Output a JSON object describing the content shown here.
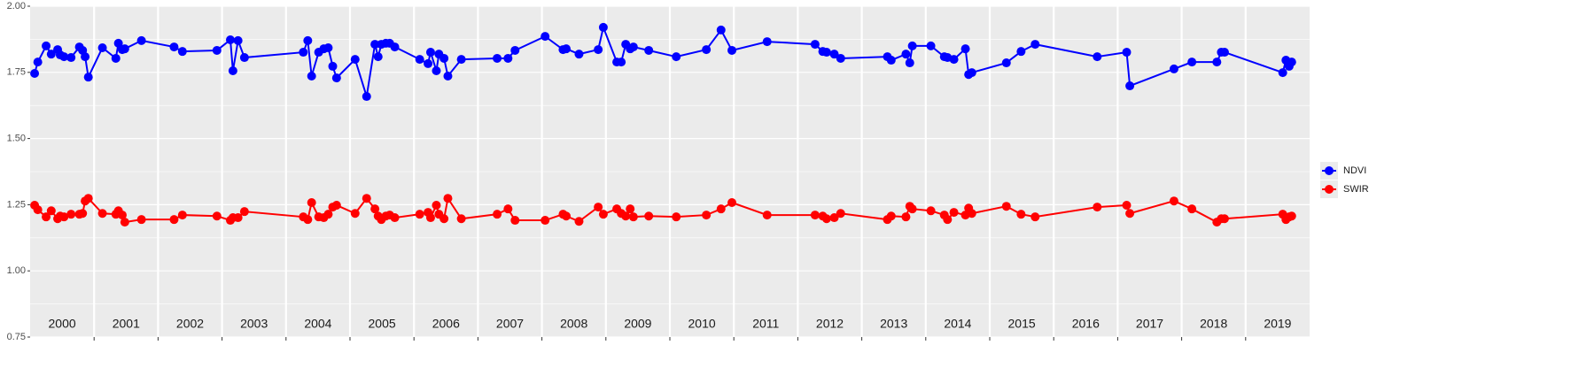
{
  "chart_data": {
    "type": "line",
    "categories": [
      "2000",
      "2001",
      "2002",
      "2003",
      "2004",
      "2005",
      "2006",
      "2007",
      "2008",
      "2009",
      "2010",
      "2011",
      "2012",
      "2013",
      "2014",
      "2015",
      "2016",
      "2017",
      "2018",
      "2019"
    ],
    "xlim": [
      2000,
      2020
    ],
    "xgrid": [
      2001,
      2002,
      2003,
      2004,
      2005,
      2006,
      2007,
      2008,
      2009,
      2010,
      2011,
      2012,
      2013,
      2014,
      2015,
      2016,
      2017,
      2018,
      2019
    ],
    "ylim": [
      0.75,
      2.0
    ],
    "yticks": [
      {
        "value": 0.75,
        "label": "0.75"
      },
      {
        "value": 1.0,
        "label": "1.00"
      },
      {
        "value": 1.25,
        "label": "1.25"
      },
      {
        "value": 1.5,
        "label": "1.50"
      },
      {
        "value": 1.75,
        "label": "1.75"
      },
      {
        "value": 2.0,
        "label": "2.00"
      }
    ],
    "grid": true,
    "legend": "right",
    "x": [
      2000.07,
      2000.12,
      2000.25,
      2000.33,
      2000.43,
      2000.47,
      2000.53,
      2000.64,
      2000.77,
      2000.82,
      2000.86,
      2000.91,
      2001.13,
      2001.34,
      2001.38,
      2001.44,
      2001.48,
      2001.74,
      2002.25,
      2002.38,
      2002.92,
      2003.13,
      2003.17,
      2003.25,
      2003.35,
      2004.27,
      2004.34,
      2004.4,
      2004.51,
      2004.59,
      2004.66,
      2004.73,
      2004.79,
      2005.08,
      2005.26,
      2005.39,
      2005.44,
      2005.49,
      2005.56,
      2005.62,
      2005.7,
      2006.09,
      2006.22,
      2006.26,
      2006.35,
      2006.39,
      2006.47,
      2006.53,
      2006.74,
      2007.3,
      2007.47,
      2007.58,
      2008.05,
      2008.33,
      2008.38,
      2008.58,
      2008.88,
      2008.96,
      2009.17,
      2009.24,
      2009.31,
      2009.38,
      2009.43,
      2009.67,
      2010.1,
      2010.57,
      2010.8,
      2010.97,
      2011.52,
      2012.27,
      2012.39,
      2012.45,
      2012.57,
      2012.67,
      2013.4,
      2013.46,
      2013.69,
      2013.75,
      2013.79,
      2014.08,
      2014.29,
      2014.34,
      2014.44,
      2014.62,
      2014.67,
      2014.72,
      2015.26,
      2015.49,
      2015.71,
      2016.68,
      2017.14,
      2017.19,
      2017.88,
      2018.16,
      2018.55,
      2018.62,
      2018.67,
      2019.58,
      2019.63,
      2019.68,
      2019.72
    ],
    "series": [
      {
        "name": "NDVI",
        "color": "#0000ff",
        "values": [
          1.746,
          1.789,
          1.85,
          1.819,
          1.836,
          1.816,
          1.809,
          1.806,
          1.846,
          1.833,
          1.809,
          1.732,
          1.843,
          1.803,
          1.86,
          1.836,
          1.839,
          1.87,
          1.846,
          1.829,
          1.833,
          1.873,
          1.756,
          1.87,
          1.806,
          1.826,
          1.87,
          1.736,
          1.826,
          1.839,
          1.843,
          1.773,
          1.729,
          1.799,
          1.659,
          1.856,
          1.809,
          1.856,
          1.86,
          1.86,
          1.846,
          1.799,
          1.783,
          1.826,
          1.756,
          1.819,
          1.803,
          1.736,
          1.799,
          1.803,
          1.803,
          1.833,
          1.886,
          1.836,
          1.839,
          1.819,
          1.836,
          1.92,
          1.789,
          1.789,
          1.856,
          1.839,
          1.846,
          1.833,
          1.809,
          1.836,
          1.91,
          1.833,
          1.866,
          1.856,
          1.829,
          1.826,
          1.819,
          1.803,
          1.809,
          1.796,
          1.819,
          1.786,
          1.85,
          1.85,
          1.809,
          1.806,
          1.799,
          1.839,
          1.742,
          1.749,
          1.786,
          1.829,
          1.856,
          1.809,
          1.826,
          1.699,
          1.763,
          1.789,
          1.789,
          1.826,
          1.826,
          1.749,
          1.796,
          1.773,
          1.789
        ]
      },
      {
        "name": "SWIR",
        "color": "#ff0000",
        "values": [
          1.248,
          1.231,
          1.204,
          1.227,
          1.197,
          1.207,
          1.204,
          1.214,
          1.214,
          1.217,
          1.264,
          1.274,
          1.217,
          1.214,
          1.227,
          1.211,
          1.184,
          1.194,
          1.194,
          1.211,
          1.207,
          1.191,
          1.201,
          1.201,
          1.224,
          1.204,
          1.194,
          1.258,
          1.204,
          1.201,
          1.214,
          1.241,
          1.248,
          1.217,
          1.274,
          1.234,
          1.207,
          1.194,
          1.207,
          1.211,
          1.201,
          1.214,
          1.221,
          1.201,
          1.248,
          1.214,
          1.197,
          1.274,
          1.197,
          1.214,
          1.234,
          1.191,
          1.191,
          1.214,
          1.207,
          1.187,
          1.241,
          1.214,
          1.234,
          1.217,
          1.207,
          1.234,
          1.204,
          1.207,
          1.204,
          1.211,
          1.234,
          1.258,
          1.211,
          1.211,
          1.207,
          1.197,
          1.201,
          1.217,
          1.194,
          1.207,
          1.204,
          1.244,
          1.234,
          1.227,
          1.211,
          1.194,
          1.221,
          1.211,
          1.237,
          1.217,
          1.244,
          1.214,
          1.204,
          1.241,
          1.248,
          1.217,
          1.264,
          1.234,
          1.184,
          1.197,
          1.197,
          1.214,
          1.194,
          1.204,
          1.207
        ]
      }
    ]
  }
}
